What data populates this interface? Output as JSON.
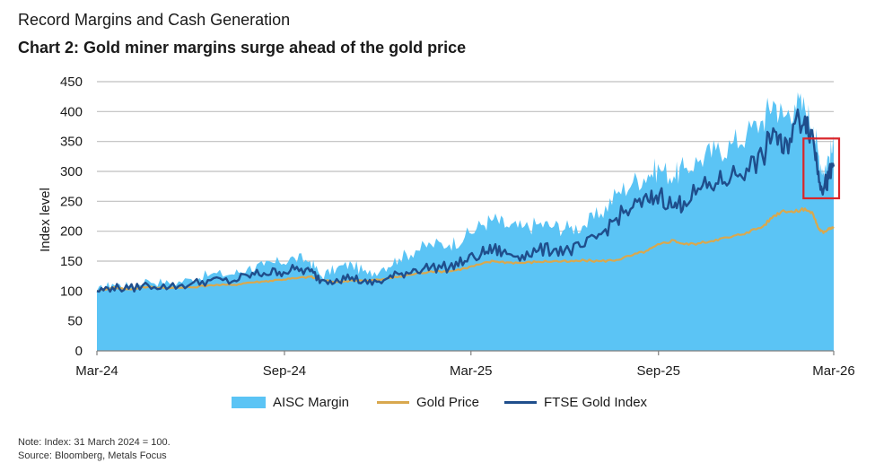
{
  "title": "Record Margins and Cash Generation",
  "subtitle": "Chart 2: Gold miner margins surge ahead of the gold price",
  "note": "Note: Index: 31 March 2024 = 100.",
  "source": "Source: Bloomberg, Metals Focus",
  "chart_data": {
    "type": "area",
    "ylabel": "Index level",
    "xlabel": "",
    "ylim": [
      0,
      450
    ],
    "yticks": [
      0,
      50,
      100,
      150,
      200,
      250,
      300,
      350,
      400,
      450
    ],
    "xlim": [
      "2024-03-31",
      "2026-03-20"
    ],
    "xticks": [
      {
        "date": "2024-03-31",
        "label": "Mar-24"
      },
      {
        "date": "2024-09-30",
        "label": "Sep-24"
      },
      {
        "date": "2025-03-31",
        "label": "Mar-25"
      },
      {
        "date": "2025-09-30",
        "label": "Sep-25"
      },
      {
        "date": "2026-03-20",
        "label": "Mar-26"
      }
    ],
    "grid": "horizontal",
    "legend_position": "bottom",
    "highlight_box": {
      "x": [
        "2026-03-01",
        "2026-03-20"
      ],
      "y": [
        255,
        355
      ],
      "color": "#d9252a"
    },
    "series": [
      {
        "name": "AISC Margin",
        "kind": "area",
        "color": "#5bc4f5",
        "points": [
          [
            "2024-03-31",
            100
          ],
          [
            "2024-04-15",
            112
          ],
          [
            "2024-05-01",
            108
          ],
          [
            "2024-05-20",
            118
          ],
          [
            "2024-06-10",
            112
          ],
          [
            "2024-07-01",
            120
          ],
          [
            "2024-07-20",
            128
          ],
          [
            "2024-08-10",
            128
          ],
          [
            "2024-08-25",
            138
          ],
          [
            "2024-09-10",
            142
          ],
          [
            "2024-09-25",
            148
          ],
          [
            "2024-10-10",
            155
          ],
          [
            "2024-10-25",
            150
          ],
          [
            "2024-11-05",
            125
          ],
          [
            "2024-11-20",
            138
          ],
          [
            "2024-12-05",
            145
          ],
          [
            "2024-12-20",
            128
          ],
          [
            "2025-01-05",
            140
          ],
          [
            "2025-01-20",
            155
          ],
          [
            "2025-02-05",
            168
          ],
          [
            "2025-02-20",
            178
          ],
          [
            "2025-03-10",
            178
          ],
          [
            "2025-03-25",
            190
          ],
          [
            "2025-04-10",
            210
          ],
          [
            "2025-04-22",
            220
          ],
          [
            "2025-05-05",
            208
          ],
          [
            "2025-05-20",
            205
          ],
          [
            "2025-06-05",
            212
          ],
          [
            "2025-06-20",
            208
          ],
          [
            "2025-07-05",
            205
          ],
          [
            "2025-07-20",
            210
          ],
          [
            "2025-08-05",
            230
          ],
          [
            "2025-08-20",
            262
          ],
          [
            "2025-09-05",
            282
          ],
          [
            "2025-09-20",
            295
          ],
          [
            "2025-10-01",
            305
          ],
          [
            "2025-10-15",
            292
          ],
          [
            "2025-10-25",
            305
          ],
          [
            "2025-11-10",
            320
          ],
          [
            "2025-11-25",
            335
          ],
          [
            "2025-12-10",
            345
          ],
          [
            "2025-12-25",
            362
          ],
          [
            "2026-01-10",
            385
          ],
          [
            "2026-01-20",
            418
          ],
          [
            "2026-01-30",
            390
          ],
          [
            "2026-02-10",
            412
          ],
          [
            "2026-02-20",
            405
          ],
          [
            "2026-02-28",
            375
          ],
          [
            "2026-03-05",
            330
          ],
          [
            "2026-03-10",
            300
          ],
          [
            "2026-03-15",
            325
          ],
          [
            "2026-03-20",
            340
          ]
        ]
      },
      {
        "name": "Gold Price",
        "kind": "line",
        "color": "#d9a84e",
        "points": [
          [
            "2024-03-31",
            100
          ],
          [
            "2024-04-15",
            106
          ],
          [
            "2024-05-01",
            103
          ],
          [
            "2024-05-20",
            107
          ],
          [
            "2024-06-10",
            105
          ],
          [
            "2024-07-01",
            106
          ],
          [
            "2024-07-20",
            110
          ],
          [
            "2024-08-10",
            110
          ],
          [
            "2024-08-25",
            114
          ],
          [
            "2024-09-10",
            116
          ],
          [
            "2024-09-25",
            119
          ],
          [
            "2024-10-10",
            121
          ],
          [
            "2024-10-25",
            124
          ],
          [
            "2024-11-05",
            118
          ],
          [
            "2024-11-20",
            115
          ],
          [
            "2024-12-05",
            118
          ],
          [
            "2024-12-20",
            117
          ],
          [
            "2025-01-05",
            120
          ],
          [
            "2025-01-20",
            124
          ],
          [
            "2025-02-05",
            129
          ],
          [
            "2025-02-20",
            133
          ],
          [
            "2025-03-10",
            133
          ],
          [
            "2025-03-25",
            138
          ],
          [
            "2025-04-10",
            145
          ],
          [
            "2025-04-22",
            150
          ],
          [
            "2025-05-05",
            148
          ],
          [
            "2025-05-20",
            147
          ],
          [
            "2025-06-05",
            149
          ],
          [
            "2025-06-20",
            150
          ],
          [
            "2025-07-05",
            149
          ],
          [
            "2025-07-20",
            151
          ],
          [
            "2025-08-05",
            150
          ],
          [
            "2025-08-20",
            152
          ],
          [
            "2025-09-05",
            160
          ],
          [
            "2025-09-20",
            168
          ],
          [
            "2025-10-01",
            178
          ],
          [
            "2025-10-15",
            185
          ],
          [
            "2025-10-25",
            178
          ],
          [
            "2025-11-10",
            180
          ],
          [
            "2025-11-25",
            186
          ],
          [
            "2025-12-10",
            190
          ],
          [
            "2025-12-25",
            198
          ],
          [
            "2026-01-10",
            208
          ],
          [
            "2026-01-20",
            225
          ],
          [
            "2026-01-30",
            235
          ],
          [
            "2026-02-10",
            232
          ],
          [
            "2026-02-20",
            238
          ],
          [
            "2026-02-28",
            228
          ],
          [
            "2026-03-05",
            205
          ],
          [
            "2026-03-10",
            197
          ],
          [
            "2026-03-15",
            205
          ],
          [
            "2026-03-20",
            207
          ]
        ]
      },
      {
        "name": "FTSE Gold Index",
        "kind": "line",
        "color": "#1f4e8c",
        "points": [
          [
            "2024-03-31",
            100
          ],
          [
            "2024-04-15",
            106
          ],
          [
            "2024-05-01",
            104
          ],
          [
            "2024-05-20",
            110
          ],
          [
            "2024-06-10",
            107
          ],
          [
            "2024-07-01",
            112
          ],
          [
            "2024-07-20",
            118
          ],
          [
            "2024-08-10",
            116
          ],
          [
            "2024-08-25",
            126
          ],
          [
            "2024-09-10",
            130
          ],
          [
            "2024-09-25",
            132
          ],
          [
            "2024-10-10",
            136
          ],
          [
            "2024-10-25",
            133
          ],
          [
            "2024-11-05",
            118
          ],
          [
            "2024-11-20",
            120
          ],
          [
            "2024-12-05",
            123
          ],
          [
            "2024-12-20",
            112
          ],
          [
            "2025-01-05",
            118
          ],
          [
            "2025-01-20",
            128
          ],
          [
            "2025-02-05",
            136
          ],
          [
            "2025-02-20",
            140
          ],
          [
            "2025-03-10",
            140
          ],
          [
            "2025-03-25",
            150
          ],
          [
            "2025-04-10",
            162
          ],
          [
            "2025-04-22",
            170
          ],
          [
            "2025-05-05",
            162
          ],
          [
            "2025-05-20",
            160
          ],
          [
            "2025-06-05",
            168
          ],
          [
            "2025-06-20",
            170
          ],
          [
            "2025-07-05",
            168
          ],
          [
            "2025-07-20",
            175
          ],
          [
            "2025-08-05",
            195
          ],
          [
            "2025-08-20",
            222
          ],
          [
            "2025-09-05",
            240
          ],
          [
            "2025-09-20",
            250
          ],
          [
            "2025-10-01",
            262
          ],
          [
            "2025-10-15",
            240
          ],
          [
            "2025-10-25",
            250
          ],
          [
            "2025-11-10",
            270
          ],
          [
            "2025-11-25",
            280
          ],
          [
            "2025-12-10",
            292
          ],
          [
            "2025-12-25",
            305
          ],
          [
            "2026-01-10",
            322
          ],
          [
            "2026-01-20",
            372
          ],
          [
            "2026-01-30",
            330
          ],
          [
            "2026-02-10",
            380
          ],
          [
            "2026-02-20",
            392
          ],
          [
            "2026-02-28",
            355
          ],
          [
            "2026-03-05",
            300
          ],
          [
            "2026-03-10",
            270
          ],
          [
            "2026-03-15",
            288
          ],
          [
            "2026-03-20",
            308
          ]
        ]
      }
    ]
  }
}
